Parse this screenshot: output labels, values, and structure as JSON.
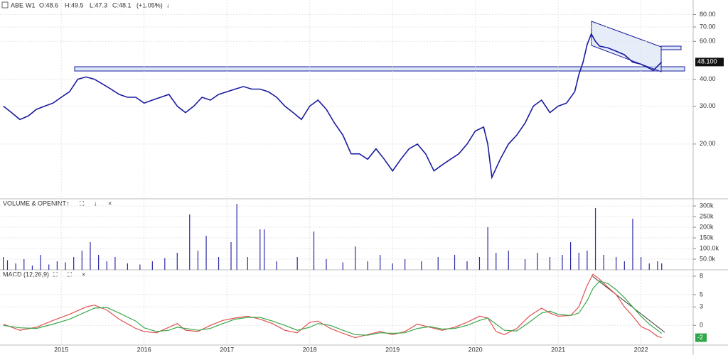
{
  "header": {
    "timeframe": "W1",
    "open": "O:48.6",
    "high": "H:49.5",
    "low": "L:47.3",
    "close": "C:48.1",
    "change": "(+1.05%)"
  },
  "controls": {
    "up": "↑",
    "expand": "⛶",
    "down": "↓",
    "close": "×"
  },
  "chart_data": [
    {
      "type": "line",
      "log_scale": true,
      "grid": true,
      "x": [
        2014.3,
        2014.4,
        2014.5,
        2014.6,
        2014.7,
        2014.8,
        2014.9,
        2015.0,
        2015.1,
        2015.2,
        2015.3,
        2015.4,
        2015.5,
        2015.6,
        2015.7,
        2015.8,
        2015.9,
        2016.0,
        2016.1,
        2016.2,
        2016.3,
        2016.4,
        2016.5,
        2016.6,
        2016.7,
        2016.8,
        2016.9,
        2017.0,
        2017.1,
        2017.2,
        2017.3,
        2017.4,
        2017.5,
        2017.6,
        2017.7,
        2017.8,
        2017.9,
        2018.0,
        2018.1,
        2018.2,
        2018.3,
        2018.4,
        2018.5,
        2018.6,
        2018.7,
        2018.8,
        2018.9,
        2019.0,
        2019.1,
        2019.2,
        2019.3,
        2019.4,
        2019.5,
        2019.6,
        2019.7,
        2019.8,
        2019.9,
        2020.0,
        2020.1,
        2020.15,
        2020.2,
        2020.3,
        2020.4,
        2020.5,
        2020.6,
        2020.7,
        2020.8,
        2020.9,
        2021.0,
        2021.1,
        2021.2,
        2021.25,
        2021.3,
        2021.35,
        2021.4,
        2021.45,
        2021.5,
        2021.6,
        2021.7,
        2021.8,
        2021.9,
        2022.0,
        2022.1,
        2022.15,
        2022.2,
        2022.25
      ],
      "series": [
        {
          "name": "ABE",
          "color": "#1a1a9e",
          "values": [
            30,
            28,
            26,
            27,
            29,
            30,
            31,
            33,
            35,
            40,
            41,
            40,
            38,
            36,
            34,
            33,
            33,
            31,
            32,
            33,
            34,
            30,
            28,
            30,
            33,
            32,
            34,
            35,
            36,
            37,
            36,
            36,
            35,
            33,
            30,
            28,
            26,
            30,
            32,
            29,
            25,
            22,
            18,
            18,
            17,
            19,
            17,
            15,
            17,
            19,
            20,
            18,
            15,
            16,
            17,
            18,
            20,
            23,
            24,
            20,
            14,
            17,
            20,
            22,
            25,
            30,
            32,
            28,
            30,
            31,
            35,
            42,
            48,
            58,
            65,
            60,
            57,
            56,
            54,
            52,
            48,
            47,
            45,
            44,
            46,
            48.1
          ]
        }
      ],
      "xlim": [
        2014.26,
        2022.63
      ],
      "xticks": [
        2015,
        2016,
        2017,
        2018,
        2019,
        2020,
        2021,
        2022
      ],
      "ylim": [
        11.3,
        84
      ],
      "yticks": [
        {
          "value": 20,
          "label": "20.00"
        },
        {
          "value": 30,
          "label": "30.00"
        },
        {
          "value": 40,
          "label": "40.00"
        },
        {
          "value": 60,
          "label": "60.00"
        },
        {
          "value": 70,
          "label": "70.00"
        },
        {
          "value": 80,
          "label": "80.00"
        }
      ],
      "last_value": {
        "value": 48.1,
        "label": "48.100"
      }
    },
    {
      "type": "bar",
      "title": "VOLUME & OPENINT",
      "color": "#2a2aa8",
      "grid": true,
      "x": [
        2014.3,
        2014.35,
        2014.45,
        2014.55,
        2014.65,
        2014.75,
        2014.85,
        2014.95,
        2015.05,
        2015.15,
        2015.25,
        2015.35,
        2015.45,
        2015.55,
        2015.65,
        2015.8,
        2015.95,
        2016.1,
        2016.25,
        2016.4,
        2016.55,
        2016.65,
        2016.75,
        2016.9,
        2017.05,
        2017.12,
        2017.25,
        2017.4,
        2017.45,
        2017.6,
        2017.85,
        2018.05,
        2018.2,
        2018.4,
        2018.55,
        2018.7,
        2018.85,
        2019.0,
        2019.15,
        2019.35,
        2019.55,
        2019.75,
        2019.9,
        2020.05,
        2020.15,
        2020.25,
        2020.4,
        2020.6,
        2020.75,
        2020.9,
        2021.05,
        2021.15,
        2021.25,
        2021.35,
        2021.45,
        2021.55,
        2021.7,
        2021.8,
        2021.9,
        2022.0,
        2022.1,
        2022.2,
        2022.25
      ],
      "values": [
        60000,
        45000,
        30000,
        50000,
        20000,
        70000,
        25000,
        40000,
        35000,
        60000,
        90000,
        130000,
        70000,
        40000,
        60000,
        30000,
        25000,
        40000,
        55000,
        80000,
        260000,
        90000,
        160000,
        60000,
        130000,
        310000,
        60000,
        190000,
        190000,
        40000,
        60000,
        180000,
        50000,
        35000,
        110000,
        40000,
        70000,
        30000,
        50000,
        40000,
        60000,
        70000,
        40000,
        60000,
        200000,
        80000,
        90000,
        50000,
        80000,
        60000,
        70000,
        130000,
        80000,
        90000,
        290000,
        70000,
        60000,
        40000,
        240000,
        60000,
        30000,
        40000,
        30000
      ],
      "xlim": [
        2014.26,
        2022.63
      ],
      "xticks": [
        2015,
        2016,
        2017,
        2018,
        2019,
        2020,
        2021,
        2022
      ],
      "ylim": [
        0,
        327000
      ],
      "yticks": [
        {
          "value": 50000,
          "label": "50.0k"
        },
        {
          "value": 100000,
          "label": "100.0k"
        },
        {
          "value": 150000,
          "label": "150k"
        },
        {
          "value": 200000,
          "label": "200k"
        },
        {
          "value": 250000,
          "label": "250k"
        },
        {
          "value": 300000,
          "label": "300k"
        }
      ]
    },
    {
      "type": "line",
      "title": "MACD (12,26,9)",
      "grid": true,
      "x": [
        2014.3,
        2014.5,
        2014.7,
        2014.9,
        2015.1,
        2015.3,
        2015.4,
        2015.55,
        2015.7,
        2015.9,
        2016.0,
        2016.15,
        2016.3,
        2016.4,
        2016.5,
        2016.65,
        2016.8,
        2016.95,
        2017.1,
        2017.25,
        2017.4,
        2017.55,
        2017.7,
        2017.85,
        2018.0,
        2018.1,
        2018.25,
        2018.4,
        2018.55,
        2018.7,
        2018.85,
        2019.0,
        2019.15,
        2019.3,
        2019.45,
        2019.6,
        2019.75,
        2019.9,
        2020.05,
        2020.15,
        2020.25,
        2020.35,
        2020.5,
        2020.65,
        2020.8,
        2020.9,
        2021.0,
        2021.15,
        2021.25,
        2021.35,
        2021.42,
        2021.5,
        2021.6,
        2021.7,
        2021.8,
        2021.9,
        2022.0,
        2022.1,
        2022.2,
        2022.25
      ],
      "series": [
        {
          "color": "#e05050",
          "values": [
            0.2,
            -0.8,
            -0.3,
            0.8,
            1.8,
            3.0,
            3.3,
            2.5,
            1.0,
            -0.5,
            -1.0,
            -1.2,
            -0.3,
            0.3,
            -0.8,
            -1.0,
            0.0,
            0.8,
            1.2,
            1.5,
            1.0,
            0.3,
            -0.8,
            -1.2,
            0.5,
            0.7,
            -0.5,
            -1.3,
            -2.0,
            -1.5,
            -1.0,
            -1.5,
            -1.0,
            0.2,
            -0.3,
            -0.8,
            -0.3,
            0.5,
            1.5,
            1.2,
            -1.0,
            -1.5,
            -0.5,
            1.5,
            2.8,
            2.0,
            1.5,
            1.6,
            3.0,
            6.5,
            8.3,
            7.5,
            6.2,
            5.0,
            3.0,
            1.5,
            -0.2,
            -0.8,
            -1.8,
            -2.0
          ]
        },
        {
          "color": "#3aa84a",
          "values": [
            0.0,
            -0.4,
            -0.5,
            0.2,
            1.0,
            2.2,
            2.8,
            2.9,
            2.0,
            0.7,
            -0.4,
            -1.0,
            -0.8,
            -0.3,
            -0.5,
            -0.8,
            -0.5,
            0.3,
            1.0,
            1.3,
            1.3,
            0.7,
            0.0,
            -0.8,
            -0.3,
            0.3,
            0.0,
            -0.8,
            -1.5,
            -1.6,
            -1.2,
            -1.3,
            -1.2,
            -0.5,
            -0.2,
            -0.6,
            -0.5,
            0.0,
            0.8,
            1.2,
            0.2,
            -0.8,
            -0.9,
            0.5,
            2.0,
            2.3,
            1.8,
            1.6,
            2.0,
            4.0,
            6.0,
            7.2,
            6.8,
            5.8,
            4.5,
            3.0,
            1.5,
            0.2,
            -0.8,
            -1.3
          ]
        }
      ],
      "xlim": [
        2014.26,
        2022.63
      ],
      "xticks": [
        2015,
        2016,
        2017,
        2018,
        2019,
        2020,
        2021,
        2022
      ],
      "ylim": [
        -3.2,
        8.8
      ],
      "yticks": [
        0,
        3,
        5,
        8
      ],
      "last_value": -2
    }
  ]
}
